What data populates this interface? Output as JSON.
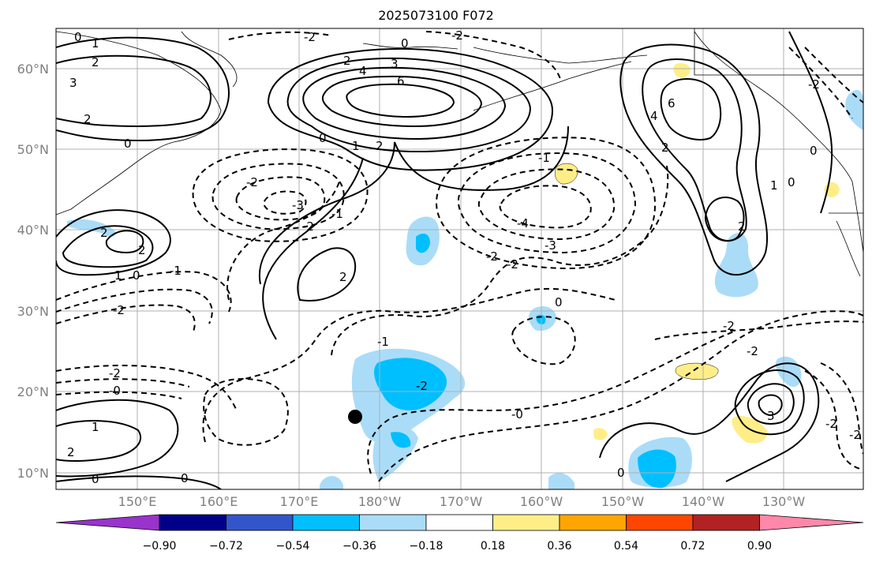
{
  "title": "2025073100 F072",
  "lat_labels": [
    "60°N",
    "50°N",
    "40°N",
    "30°N",
    "20°N",
    "10°N"
  ],
  "lon_labels": [
    "150°E",
    "160°E",
    "170°E",
    "180°W",
    "170°W",
    "160°W",
    "150°W",
    "140°W",
    "130°W"
  ],
  "colorbar": {
    "ticks": [
      "−0.90",
      "−0.72",
      "−0.54",
      "−0.36",
      "−0.18",
      "0.18",
      "0.36",
      "0.54",
      "0.72",
      "0.90"
    ],
    "colors": [
      "#9933cc",
      "#000088",
      "#3355cc",
      "#00bfff",
      "#aadcf8",
      "#ffffff",
      "#ffee88",
      "#ffa500",
      "#ff4500",
      "#b22222",
      "#ff88aa"
    ]
  },
  "contour_labels": [
    "0",
    "1",
    "2",
    "3",
    "4",
    "6",
    "-1",
    "-2",
    "-3",
    "-4",
    "-0"
  ],
  "marker": "black-dot"
}
